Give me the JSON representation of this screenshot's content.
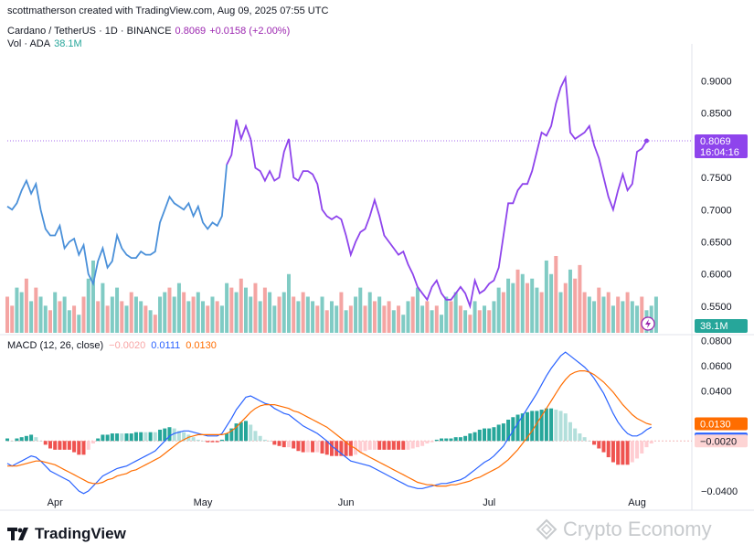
{
  "header": {
    "created_by": "scottmatherson created with TradingView.com, Aug 09, 2025 07:55 UTC"
  },
  "legend": {
    "symbol": "Cardano / TetherUS · 1D · BINANCE",
    "price": "0.8069",
    "change": "+0.0158 (+2.00%)",
    "volume_label": "Vol · ADA",
    "volume_value": "38.1M"
  },
  "macd_legend": {
    "label": "MACD (12, 26, close)",
    "hist_value": "−0.0020",
    "macd_value": "0.0111",
    "signal_value": "0.0130"
  },
  "price_tags": {
    "price": "0.8069",
    "countdown": "16:04:16",
    "volume": "38.1M",
    "signal": "0.0130",
    "macd": "0.0111",
    "hist": "−0.0020"
  },
  "branding": {
    "logo_text": "TradingView",
    "watermark": "Crypto Economy"
  },
  "colors": {
    "price_line_blue": "#4a90d9",
    "price_line_purple": "#8e44ec",
    "vol_up": "#80cbc4",
    "vol_down": "#f4a5a3",
    "macd_line": "#2962ff",
    "signal_line": "#ff6d00",
    "hist_up_strong": "#26a69a",
    "hist_up_weak": "#b2dfdb",
    "hist_down_strong": "#ef5350",
    "hist_down_weak": "#ffcdd2"
  },
  "chart_data": [
    {
      "type": "line",
      "title": "Cardano / TetherUS · 1D · BINANCE",
      "ylim": [
        0.52,
        0.915
      ],
      "y_ticks": [
        "0.9000",
        "0.8500",
        "0.8000",
        "0.7500",
        "0.7000",
        "0.6500",
        "0.6000",
        "0.5500"
      ],
      "y_tick_values": [
        0.9,
        0.85,
        0.8,
        0.75,
        0.7,
        0.65,
        0.6,
        0.55
      ],
      "x_ticks": [
        "Apr",
        "May",
        "Jun",
        "Jul",
        "Aug"
      ],
      "x_tick_days": [
        10,
        41,
        71,
        101,
        132
      ],
      "series": [
        {
          "values": [
            0.705,
            0.7,
            0.71,
            0.73,
            0.745,
            0.725,
            0.74,
            0.7,
            0.67,
            0.66,
            0.66,
            0.675,
            0.64,
            0.65,
            0.655,
            0.63,
            0.645,
            0.6,
            0.585,
            0.62,
            0.64,
            0.61,
            0.62,
            0.66,
            0.64,
            0.63,
            0.625,
            0.625,
            0.635,
            0.63,
            0.63,
            0.635,
            0.68,
            0.7,
            0.72,
            0.71,
            0.705,
            0.7,
            0.71,
            0.69,
            0.705,
            0.68,
            0.67,
            0.68,
            0.675,
            0.69,
            0.77,
            0.785,
            0.84,
            0.81,
            0.83,
            0.81,
            0.765,
            0.76,
            0.745,
            0.76,
            0.745,
            0.75,
            0.79,
            0.81,
            0.75,
            0.745,
            0.76,
            0.76,
            0.755,
            0.74,
            0.7,
            0.69,
            0.685,
            0.69,
            0.685,
            0.66,
            0.63,
            0.65,
            0.665,
            0.67,
            0.69,
            0.715,
            0.69,
            0.66,
            0.65,
            0.64,
            0.63,
            0.635,
            0.615,
            0.6,
            0.58,
            0.57,
            0.56,
            0.58,
            0.59,
            0.57,
            0.56,
            0.56,
            0.57,
            0.58,
            0.57,
            0.55,
            0.59,
            0.57,
            0.575,
            0.585,
            0.59,
            0.61,
            0.66,
            0.71,
            0.71,
            0.73,
            0.74,
            0.74,
            0.76,
            0.79,
            0.82,
            0.815,
            0.83,
            0.865,
            0.89,
            0.905,
            0.82,
            0.81,
            0.815,
            0.82,
            0.83,
            0.8,
            0.78,
            0.75,
            0.72,
            0.7,
            0.73,
            0.755,
            0.73,
            0.74,
            0.79,
            0.795,
            0.807
          ],
          "purple_from_index": 46
        }
      ]
    },
    {
      "type": "bar",
      "title": "Vol · ADA",
      "values": [
        8,
        6,
        10,
        9,
        12,
        7,
        10,
        8,
        6,
        5,
        9,
        7,
        8,
        5,
        6,
        4,
        8,
        12,
        16,
        7,
        11,
        6,
        8,
        10,
        7,
        6,
        9,
        8,
        7,
        6,
        5,
        4,
        8,
        9,
        10,
        8,
        11,
        9,
        7,
        8,
        9,
        7,
        6,
        8,
        7,
        6,
        11,
        10,
        9,
        12,
        10,
        8,
        11,
        7,
        10,
        9,
        6,
        8,
        9,
        13,
        8,
        7,
        9,
        8,
        7,
        6,
        8,
        5,
        7,
        6,
        9,
        5,
        6,
        8,
        10,
        6,
        9,
        7,
        8,
        6,
        7,
        5,
        6,
        4,
        7,
        8,
        10,
        6,
        7,
        5,
        6,
        4,
        8,
        7,
        9,
        6,
        5,
        4,
        7,
        5,
        6,
        5,
        7,
        10,
        9,
        12,
        11,
        14,
        13,
        11,
        12,
        10,
        9,
        16,
        13,
        17,
        9,
        11,
        14,
        12,
        15,
        9,
        8,
        7,
        10,
        8,
        9,
        6,
        8,
        7,
        9,
        7,
        6,
        8,
        5,
        6,
        8
      ],
      "down_days": [
        0,
        1,
        4,
        6,
        9,
        11,
        14,
        16,
        19,
        21,
        24,
        26,
        29,
        31,
        34,
        37,
        39,
        42,
        44,
        47,
        49,
        52,
        54,
        57,
        60,
        62,
        65,
        67,
        70,
        72,
        75,
        77,
        79,
        80,
        82,
        85,
        88,
        90,
        93,
        95,
        97,
        99,
        101,
        104,
        107,
        109,
        112,
        115,
        117,
        119,
        120,
        121,
        124,
        126,
        128,
        130,
        133
      ]
    },
    {
      "type": "line",
      "title": "MACD (12, 26, close)",
      "ylim": [
        -0.048,
        0.082
      ],
      "y_ticks": [
        "0.0800",
        "0.0600",
        "0.0400",
        "−0.0020",
        "−0.0400"
      ],
      "y_tick_values": [
        0.08,
        0.06,
        0.04,
        -0.002,
        -0.04
      ],
      "series": [
        {
          "name": "MACD",
          "values": [
            -0.018,
            -0.02,
            -0.018,
            -0.016,
            -0.014,
            -0.012,
            -0.013,
            -0.016,
            -0.02,
            -0.024,
            -0.026,
            -0.028,
            -0.03,
            -0.032,
            -0.036,
            -0.04,
            -0.042,
            -0.04,
            -0.036,
            -0.032,
            -0.028,
            -0.026,
            -0.024,
            -0.022,
            -0.021,
            -0.02,
            -0.018,
            -0.016,
            -0.014,
            -0.012,
            -0.01,
            -0.008,
            -0.004,
            0.0,
            0.004,
            0.006,
            0.007,
            0.008,
            0.008,
            0.007,
            0.006,
            0.005,
            0.004,
            0.004,
            0.004,
            0.006,
            0.012,
            0.018,
            0.025,
            0.03,
            0.035,
            0.036,
            0.034,
            0.032,
            0.03,
            0.029,
            0.026,
            0.024,
            0.022,
            0.021,
            0.018,
            0.015,
            0.012,
            0.01,
            0.008,
            0.006,
            0.003,
            0.0,
            -0.004,
            -0.007,
            -0.01,
            -0.013,
            -0.016,
            -0.017,
            -0.018,
            -0.019,
            -0.02,
            -0.022,
            -0.024,
            -0.026,
            -0.028,
            -0.03,
            -0.032,
            -0.034,
            -0.036,
            -0.037,
            -0.038,
            -0.038,
            -0.037,
            -0.036,
            -0.035,
            -0.034,
            -0.034,
            -0.033,
            -0.032,
            -0.031,
            -0.029,
            -0.026,
            -0.023,
            -0.02,
            -0.017,
            -0.015,
            -0.012,
            -0.008,
            -0.004,
            0.002,
            0.008,
            0.014,
            0.02,
            0.026,
            0.032,
            0.038,
            0.045,
            0.052,
            0.058,
            0.063,
            0.068,
            0.071,
            0.068,
            0.065,
            0.062,
            0.059,
            0.055,
            0.05,
            0.044,
            0.038,
            0.03,
            0.022,
            0.015,
            0.01,
            0.006,
            0.004,
            0.004,
            0.006,
            0.009,
            0.011
          ]
        },
        {
          "name": "Signal",
          "values": [
            -0.02,
            -0.02,
            -0.02,
            -0.019,
            -0.018,
            -0.017,
            -0.016,
            -0.016,
            -0.017,
            -0.018,
            -0.019,
            -0.021,
            -0.023,
            -0.025,
            -0.027,
            -0.029,
            -0.031,
            -0.033,
            -0.034,
            -0.034,
            -0.033,
            -0.031,
            -0.03,
            -0.028,
            -0.027,
            -0.026,
            -0.024,
            -0.023,
            -0.021,
            -0.019,
            -0.017,
            -0.015,
            -0.013,
            -0.01,
            -0.007,
            -0.004,
            -0.001,
            0.001,
            0.003,
            0.004,
            0.005,
            0.005,
            0.005,
            0.005,
            0.005,
            0.005,
            0.006,
            0.008,
            0.011,
            0.015,
            0.019,
            0.023,
            0.026,
            0.028,
            0.029,
            0.029,
            0.029,
            0.028,
            0.027,
            0.026,
            0.024,
            0.023,
            0.021,
            0.019,
            0.017,
            0.015,
            0.013,
            0.011,
            0.008,
            0.005,
            0.002,
            -0.001,
            -0.004,
            -0.006,
            -0.009,
            -0.011,
            -0.013,
            -0.015,
            -0.017,
            -0.019,
            -0.021,
            -0.023,
            -0.025,
            -0.027,
            -0.029,
            -0.031,
            -0.033,
            -0.034,
            -0.035,
            -0.035,
            -0.036,
            -0.036,
            -0.036,
            -0.035,
            -0.035,
            -0.034,
            -0.033,
            -0.032,
            -0.03,
            -0.029,
            -0.027,
            -0.025,
            -0.023,
            -0.021,
            -0.018,
            -0.015,
            -0.011,
            -0.007,
            -0.002,
            0.003,
            0.008,
            0.014,
            0.02,
            0.026,
            0.032,
            0.038,
            0.044,
            0.049,
            0.053,
            0.055,
            0.056,
            0.056,
            0.055,
            0.053,
            0.05,
            0.047,
            0.043,
            0.039,
            0.034,
            0.029,
            0.025,
            0.021,
            0.018,
            0.016,
            0.014,
            0.013
          ]
        }
      ]
    }
  ]
}
